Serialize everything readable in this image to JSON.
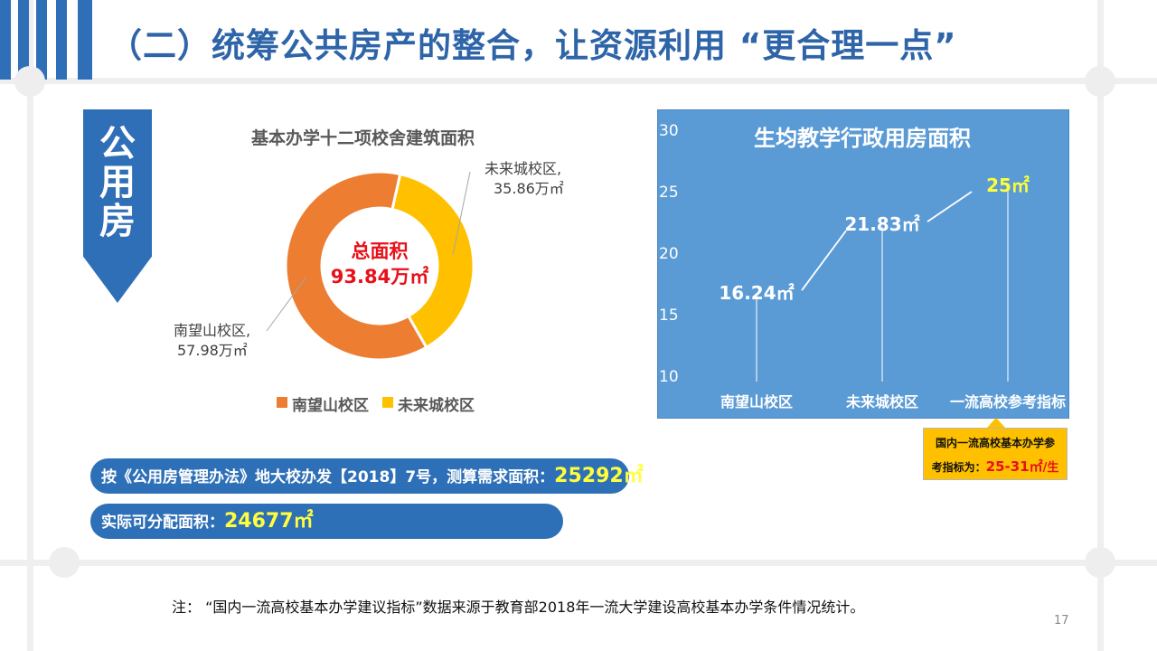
{
  "title": "（二）统筹公共房产的整合，让资源利用 “更合理一点”",
  "ribbon_label": "公用房",
  "chart_data": [
    {
      "type": "pie",
      "title": "基本办学十二项校舍建筑面积",
      "center_label": "总面积",
      "center_value": "93.84万㎡",
      "slices": [
        {
          "name": "南望山校区",
          "value": 57.98,
          "label_name": "南望山校区,",
          "label_value": "57.98万㎡",
          "color": "#ed7d31"
        },
        {
          "name": "未来城校区",
          "value": 35.86,
          "label_name": "未来城校区,",
          "label_value": "35.86万㎡",
          "color": "#ffc000"
        }
      ],
      "legend": [
        "南望山校区",
        "未来城校区"
      ],
      "legend_placement": "bottom"
    },
    {
      "type": "line",
      "title": "生均教学行政用房面积",
      "categories": [
        "南望山校区",
        "未来城校区",
        "一流高校参考指标"
      ],
      "values": [
        16.24,
        21.83,
        25
      ],
      "data_labels": [
        "16.24㎡",
        "21.83㎡",
        "25㎡"
      ],
      "ylim": [
        10,
        30
      ],
      "yticks": [
        "10",
        "15",
        "20",
        "25",
        "30"
      ],
      "background": "#5b9bd5",
      "grid": false
    }
  ],
  "callout": {
    "line1": "国内一流高校基本办学参",
    "line2_prefix": "考指标为：",
    "line2_value": "25-31㎡",
    "line2_suffix": "/生"
  },
  "pills": [
    {
      "text": "按《公用房管理办法》地大校办发【2018】7号，测算需求面积：",
      "value": "25292㎡"
    },
    {
      "text": "实际可分配面积：",
      "value": "24677㎡"
    }
  ],
  "footnote": "注：  “国内一流高校基本办学建议指标”数据来源于教育部2018年一流大学建设高校基本办学条件情况统计。",
  "page_number": "17",
  "colors": {
    "accent": "#2f6fb8",
    "orange": "#ed7d31",
    "gold": "#ffc000",
    "red": "#e8101a",
    "yellow_text": "#ffff3a"
  }
}
